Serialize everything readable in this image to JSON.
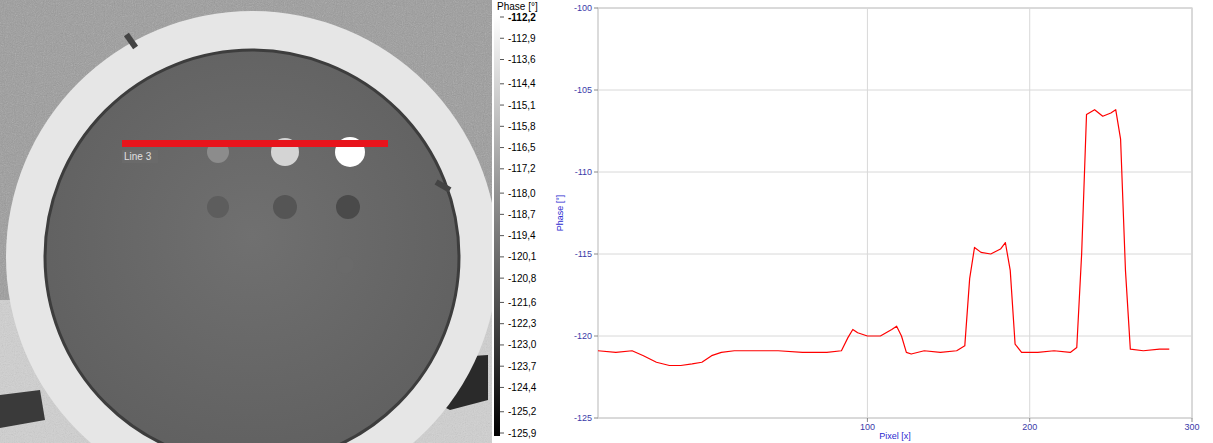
{
  "chart_data": [
    {
      "type": "image",
      "colorbar": {
        "title": "Phase [°]",
        "range": [
          -125.9,
          -112.2
        ],
        "ticks": [
          {
            "value": -112.2,
            "label": "-112,2"
          },
          {
            "value": -112.9,
            "label": "-112,9"
          },
          {
            "value": -113.6,
            "label": "-113,6"
          },
          {
            "value": -114.4,
            "label": "-114,4"
          },
          {
            "value": -115.1,
            "label": "-115,1"
          },
          {
            "value": -115.8,
            "label": "-115,8"
          },
          {
            "value": -116.5,
            "label": "-116,5"
          },
          {
            "value": -117.2,
            "label": "-117,2"
          },
          {
            "value": -118.0,
            "label": "-118,0"
          },
          {
            "value": -118.7,
            "label": "-118,7"
          },
          {
            "value": -119.4,
            "label": "-119,4"
          },
          {
            "value": -120.1,
            "label": "-120,1"
          },
          {
            "value": -120.8,
            "label": "-120,8"
          },
          {
            "value": -121.6,
            "label": "-121,6"
          },
          {
            "value": -122.3,
            "label": "-122,3"
          },
          {
            "value": -123.0,
            "label": "-123,0"
          },
          {
            "value": -123.7,
            "label": "-123,7"
          },
          {
            "value": -124.4,
            "label": "-124,4"
          },
          {
            "value": -125.2,
            "label": "-125,2"
          },
          {
            "value": -125.9,
            "label": "-125,9"
          }
        ]
      },
      "annotations": [
        "Line 3"
      ]
    },
    {
      "type": "line",
      "x_label": "Pixel [x]",
      "y_label": "Phase [°]",
      "x": [
        -66,
        -55,
        -45,
        -38,
        -30,
        -22,
        -15,
        -8,
        -2,
        4,
        10,
        18,
        30,
        45,
        60,
        75,
        84,
        88,
        91,
        94,
        100,
        108,
        115,
        118,
        121,
        124,
        127,
        135,
        145,
        155,
        160,
        163,
        166,
        170,
        176,
        182,
        185,
        188,
        191,
        195,
        205,
        215,
        225,
        229,
        232,
        235,
        240,
        245,
        250,
        253,
        256,
        259,
        262,
        270,
        280,
        286
      ],
      "series": [
        {
          "color": "#ff0000",
          "values": [
            -120.9,
            -121.0,
            -120.9,
            -121.2,
            -121.6,
            -121.8,
            -121.8,
            -121.7,
            -121.6,
            -121.2,
            -121.0,
            -120.9,
            -120.9,
            -120.9,
            -121.0,
            -121.0,
            -120.9,
            -120.1,
            -119.6,
            -119.8,
            -120.0,
            -120.0,
            -119.6,
            -119.4,
            -120.0,
            -121.0,
            -121.1,
            -120.9,
            -121.0,
            -120.9,
            -120.6,
            -116.5,
            -114.6,
            -114.9,
            -115.0,
            -114.7,
            -114.3,
            -116.0,
            -120.5,
            -121.0,
            -121.0,
            -120.9,
            -121.0,
            -120.7,
            -115.0,
            -106.5,
            -106.2,
            -106.6,
            -106.4,
            -106.2,
            -108.0,
            -116.0,
            -120.8,
            -120.9,
            -120.8,
            -120.8
          ]
        }
      ],
      "xlim": [
        -66,
        300
      ],
      "ylim": [
        -125,
        -100
      ],
      "xticks": [
        100,
        200,
        300
      ],
      "yticks": [
        -125,
        -120,
        -115,
        -110,
        -105,
        -100
      ],
      "grid": true
    }
  ]
}
